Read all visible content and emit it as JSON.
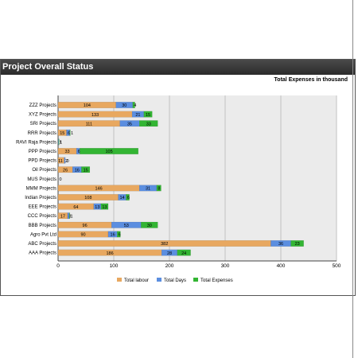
{
  "panel": {
    "title": "Project Overall Status"
  },
  "chart_data": {
    "type": "bar",
    "orientation": "horizontal",
    "stacked": true,
    "title": "Total Expenses in thousand",
    "xlabel": "",
    "ylabel": "",
    "xlim": [
      0,
      500
    ],
    "xticks": [
      0,
      100,
      200,
      300,
      400,
      500
    ],
    "grid": true,
    "legend_position": "bottom",
    "categories": [
      "ZZZ Projects",
      "XYZ Projects",
      "SRI Projects",
      "RRR Projects",
      "RAVI Raja Projects",
      "PPP Projects",
      "PPD Projects",
      "Oil Projects",
      "MUS Projects",
      "MMM Projects",
      "Indian Projects",
      "EEE Projects",
      "CCC Projects",
      "BBB Projects",
      "Agro Pvt Ltd",
      "ABC Projects",
      "AAA Projects"
    ],
    "series": [
      {
        "name": "Total labour",
        "color": "#e8a860",
        "values": [
          104,
          133,
          111,
          15,
          0,
          33,
          11,
          26,
          0,
          146,
          108,
          64,
          17,
          96,
          90,
          382,
          186
        ],
        "labels": [
          "104",
          "133",
          "111",
          "15",
          "",
          "33",
          "11",
          "26",
          "",
          "146",
          "108",
          "64",
          "17",
          "96",
          "90",
          "382",
          "186"
        ]
      },
      {
        "name": "Total Days",
        "color": "#5b8ee0",
        "values": [
          30,
          21,
          35,
          6,
          1,
          6,
          2,
          16,
          0,
          31,
          14,
          13,
          3,
          53,
          16,
          36,
          28
        ],
        "labels": [
          "30",
          "21",
          "35",
          "6",
          "1",
          "6",
          "2",
          "16",
          "0",
          "31",
          "14",
          "13",
          "3",
          "53",
          "16",
          "36",
          "28"
        ]
      },
      {
        "name": "Total Expenses",
        "color": "#33b533",
        "values": [
          4,
          15,
          33,
          1,
          1,
          105,
          0,
          15,
          0,
          8,
          6,
          13,
          1,
          30,
          6,
          23,
          24
        ],
        "labels": [
          "4",
          "15",
          "33",
          "1",
          "1",
          "105",
          "0",
          "15",
          "",
          "8",
          "6",
          "13",
          "1",
          "30",
          "6",
          "23",
          "24"
        ]
      }
    ],
    "colors": {
      "plot_bg": "#ebebeb",
      "gridline": "#b8b8b8",
      "axis": "#444444"
    }
  }
}
